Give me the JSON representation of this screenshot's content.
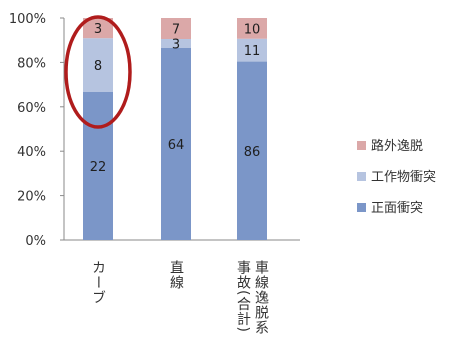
{
  "chart_data": {
    "type": "bar",
    "stacked": "percent",
    "categories": [
      "カーブ",
      "直線",
      "車線逸脱系事故(合計)"
    ],
    "category_label_columns": [
      [
        "カーブ"
      ],
      [
        "直線"
      ],
      [
        "車線逸脱系",
        "事故(合計)"
      ]
    ],
    "series": [
      {
        "name": "正面衝突",
        "values": [
          22,
          64,
          86
        ],
        "color": "#7b96c8"
      },
      {
        "name": "工作物衝突",
        "values": [
          8,
          3,
          11
        ],
        "color": "#b6c4e0"
      },
      {
        "name": "路外逸脱",
        "values": [
          3,
          7,
          10
        ],
        "color": "#dba8a8"
      }
    ],
    "yticks": [
      "0%",
      "20%",
      "40%",
      "60%",
      "80%",
      "100%"
    ],
    "ylim": [
      0,
      100
    ],
    "grid": false,
    "legend_position": "right",
    "highlight": {
      "shape": "ellipse",
      "category": "カーブ",
      "color": "#b01c1c"
    }
  }
}
